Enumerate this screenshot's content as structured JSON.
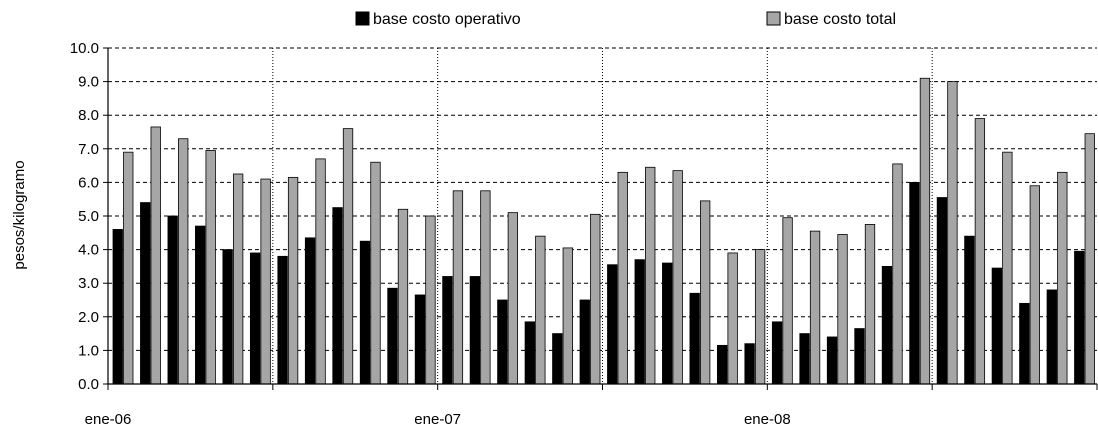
{
  "chart_data": {
    "type": "bar",
    "title": "",
    "xlabel": "",
    "ylabel": "pesos/kilogramo",
    "ylim": [
      0,
      10
    ],
    "y_ticks": [
      "0.0",
      "1.0",
      "2.0",
      "3.0",
      "4.0",
      "5.0",
      "6.0",
      "7.0",
      "8.0",
      "9.0",
      "10.0"
    ],
    "x_tick_labels": [
      {
        "index": 0,
        "label": "ene-06"
      },
      {
        "index": 12,
        "label": "ene-07"
      },
      {
        "index": 24,
        "label": "ene-08"
      }
    ],
    "gridlines": "horizontal dashed; vertical dotted every 6 months",
    "legend_position": "top",
    "series": [
      {
        "name": "base costo operativo",
        "color": "#000000",
        "values": [
          4.6,
          5.4,
          5.0,
          4.7,
          4.0,
          3.9,
          3.8,
          4.35,
          5.25,
          4.25,
          2.85,
          2.65,
          3.2,
          3.2,
          2.5,
          1.85,
          1.5,
          2.5,
          3.55,
          3.7,
          3.6,
          2.7,
          1.15,
          1.2,
          1.85,
          1.5,
          1.4,
          1.65,
          3.5,
          6.0,
          5.55,
          4.4,
          3.45,
          2.4,
          2.8,
          3.95
        ]
      },
      {
        "name": "base costo total",
        "color": "#a6a6a6",
        "values": [
          6.9,
          7.65,
          7.3,
          6.95,
          6.25,
          6.1,
          6.15,
          6.7,
          7.6,
          6.6,
          5.2,
          5.0,
          5.75,
          5.75,
          5.1,
          4.4,
          4.05,
          5.05,
          6.3,
          6.45,
          6.35,
          5.45,
          3.9,
          4.0,
          4.95,
          4.55,
          4.45,
          4.75,
          6.55,
          9.1,
          9.0,
          7.9,
          6.9,
          5.9,
          6.3,
          7.45
        ]
      }
    ]
  }
}
